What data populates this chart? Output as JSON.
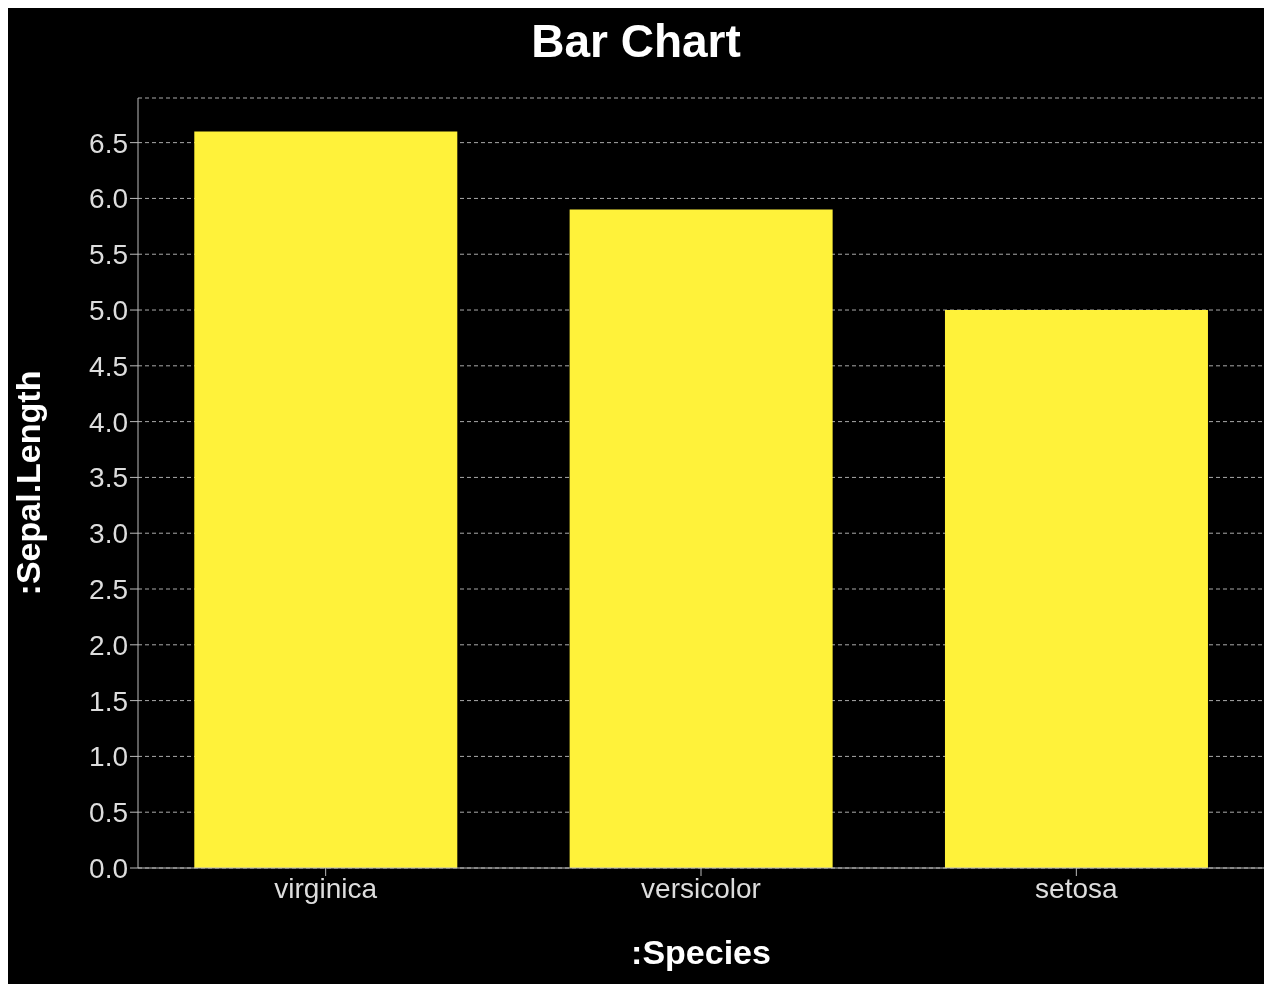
{
  "chart_data": {
    "type": "bar",
    "title": "Bar Chart",
    "xlabel": ":Species",
    "ylabel": ":Sepal.Length",
    "categories": [
      "virginica",
      "versicolor",
      "setosa"
    ],
    "values": [
      6.6,
      5.9,
      5.0
    ],
    "color": "#fff23a",
    "ylim": [
      0,
      6.9
    ],
    "yticks": [
      {
        "value": 0,
        "label": "0.0"
      },
      0.5,
      {
        "value": 1,
        "label": "1.0"
      },
      1.5,
      {
        "value": 2,
        "label": "2.0"
      },
      2.5,
      {
        "value": 3,
        "label": "3.0"
      },
      3.5,
      {
        "value": 4,
        "label": "4.0"
      },
      4.5,
      {
        "value": 5,
        "label": "5.0"
      },
      5.5,
      {
        "value": 6,
        "label": "6.0"
      },
      6.5
    ],
    "grid": "y"
  }
}
